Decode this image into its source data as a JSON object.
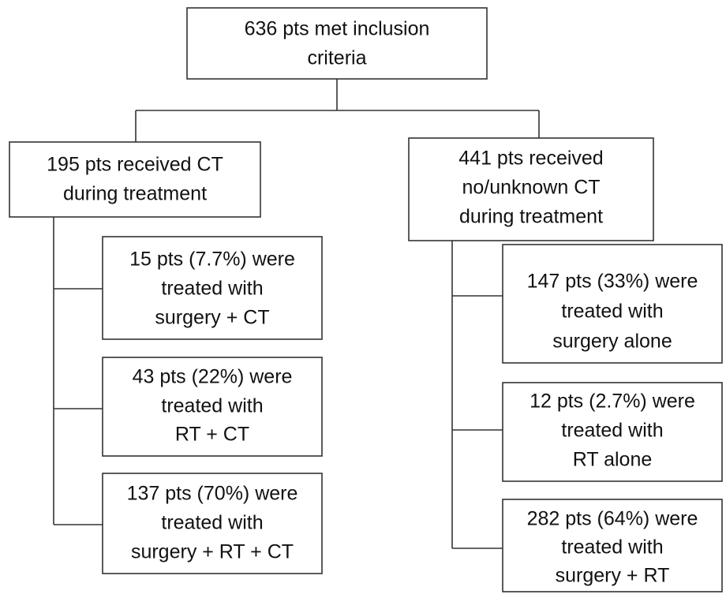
{
  "nodes": [
    {
      "lines": [
        "636 pts met inclusion",
        "criteria"
      ]
    },
    {
      "lines": [
        "195 pts received CT",
        "during treatment"
      ]
    },
    {
      "lines": [
        "441 pts received",
        "no/unknown CT",
        "during treatment"
      ]
    },
    {
      "lines": [
        "15 pts (7.7%) were",
        "treated with",
        "surgery + CT"
      ]
    },
    {
      "lines": [
        "43 pts (22%) were",
        "treated with",
        "RT + CT"
      ]
    },
    {
      "lines": [
        "137 pts (70%) were",
        "treated with",
        "surgery + RT + CT"
      ]
    },
    {
      "lines": [
        "147 pts (33%) were",
        "treated with",
        "surgery alone"
      ]
    },
    {
      "lines": [
        "12 pts (2.7%) were",
        "treated with",
        "RT alone"
      ]
    },
    {
      "lines": [
        "282 pts (64%) were",
        "treated with",
        "surgery + RT"
      ]
    }
  ]
}
